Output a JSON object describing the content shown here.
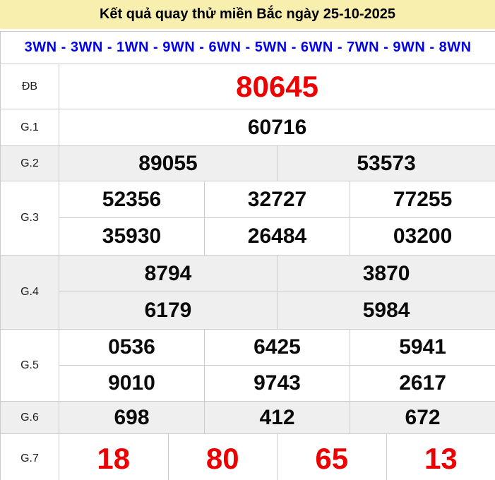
{
  "title": "Kết quả quay thử miền Bắc ngày 25-10-2025",
  "wn_line": "3WN - 3WN - 1WN - 9WN - 6WN - 5WN - 6WN - 7WN - 9WN - 8WN",
  "colors": {
    "title_background": "#f8efae",
    "wn_text": "#0000ee",
    "special_number": "#ee0000",
    "normal_number": "#0a0a0a",
    "alt_row_background": "#efefef",
    "border": "#cccccc"
  },
  "prizes": [
    {
      "label": "ĐB",
      "rows": [
        [
          "80645"
        ]
      ]
    },
    {
      "label": "G.1",
      "rows": [
        [
          "60716"
        ]
      ]
    },
    {
      "label": "G.2",
      "rows": [
        [
          "89055",
          "53573"
        ]
      ]
    },
    {
      "label": "G.3",
      "rows": [
        [
          "52356",
          "32727",
          "77255"
        ],
        [
          "35930",
          "26484",
          "03200"
        ]
      ]
    },
    {
      "label": "G.4",
      "rows": [
        [
          "8794",
          "3870"
        ],
        [
          "6179",
          "5984"
        ]
      ]
    },
    {
      "label": "G.5",
      "rows": [
        [
          "0536",
          "6425",
          "5941"
        ],
        [
          "9010",
          "9743",
          "2617"
        ]
      ]
    },
    {
      "label": "G.6",
      "rows": [
        [
          "698",
          "412",
          "672"
        ]
      ]
    },
    {
      "label": "G.7",
      "rows": [
        [
          "18",
          "80",
          "65",
          "13"
        ]
      ]
    }
  ]
}
